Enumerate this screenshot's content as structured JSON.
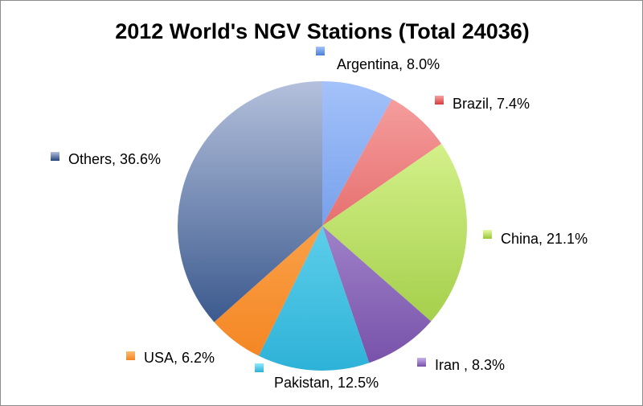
{
  "chart_data": {
    "type": "pie",
    "title": "2012 World's NGV Stations (Total 24036)",
    "categories": [
      "Argentina",
      "Brazil",
      "China",
      "Iran ",
      "Pakistan",
      "USA",
      "Others"
    ],
    "values": [
      8.0,
      7.4,
      21.1,
      8.3,
      12.5,
      6.2,
      36.6
    ],
    "labels": [
      "Argentina, 8.0%",
      "Brazil, 7.4%",
      "China, 21.1%",
      "Iran , 8.3%",
      "Pakistan, 12.5%",
      "USA, 6.2%",
      "Others, 36.6%"
    ],
    "colors": [
      [
        "#a4c2fa",
        "#4a7fdc"
      ],
      [
        "#f7a3a3",
        "#d63c3c"
      ],
      [
        "#e4fca0",
        "#98c63a"
      ],
      [
        "#c8b2ea",
        "#7650a8"
      ],
      [
        "#8ceafc",
        "#2eb2d8"
      ],
      [
        "#ffbc70",
        "#f48420"
      ],
      [
        "#b4c0dc",
        "#23457e"
      ]
    ],
    "start_angle": "12 o'clock",
    "direction": "clockwise",
    "legend": "data labels with markers"
  }
}
